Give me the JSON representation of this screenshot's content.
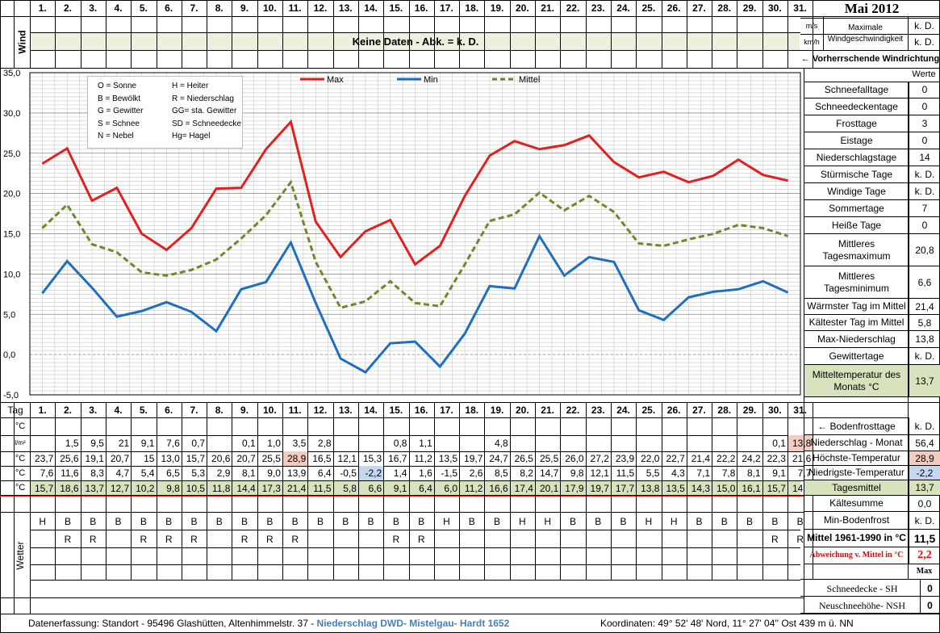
{
  "header": {
    "days": [
      "1.",
      "2.",
      "3.",
      "4.",
      "5.",
      "6.",
      "7.",
      "8.",
      "9.",
      "10.",
      "11.",
      "12.",
      "13.",
      "14.",
      "15.",
      "16.",
      "17.",
      "18.",
      "19.",
      "20.",
      "21.",
      "22.",
      "23.",
      "24.",
      "25.",
      "26.",
      "27.",
      "28.",
      "29.",
      "30.",
      "31."
    ],
    "month_title": "Mai 2012"
  },
  "wind": {
    "label": "Wind",
    "no_data": "Keine Daten - Abk. = k. D.",
    "unit_ms": "m/s",
    "unit_kmh": "km/h",
    "max_label": "Maximale Windgeschwindigkeit",
    "val1": "k. D.",
    "val2": "k. D.",
    "direction_label": "← Vorherrschende Windrichtung"
  },
  "legend": {
    "codes": [
      [
        "O = Sonne",
        "H = Heiter"
      ],
      [
        "B = Bewölkt",
        "R = Niederschlag"
      ],
      [
        "G = Gewitter",
        "GG= sta. Gewitter"
      ],
      [
        "S = Schnee",
        "SD = Schneedecke"
      ],
      [
        "N = Nebel",
        "Hg= Hagel"
      ]
    ],
    "series": [
      "Max",
      "Min",
      "Mittel"
    ]
  },
  "colors": {
    "max": "#e41f1f",
    "min": "#1f6fbf",
    "mittel": "#6b8a2a",
    "mittel_bg": "#d6e3bc",
    "hl_pink": "#f4cbbf",
    "hl_blue": "#c5d7f0",
    "wind_bg": "#eaf1dd"
  },
  "chart_data": {
    "type": "line",
    "x": [
      1,
      2,
      3,
      4,
      5,
      6,
      7,
      8,
      9,
      10,
      11,
      12,
      13,
      14,
      15,
      16,
      17,
      18,
      19,
      20,
      21,
      22,
      23,
      24,
      25,
      26,
      27,
      28,
      29,
      30,
      31
    ],
    "series": [
      {
        "name": "Max",
        "values": [
          23.7,
          25.6,
          19.1,
          20.7,
          15.0,
          13.0,
          15.7,
          20.6,
          20.7,
          25.5,
          28.9,
          16.5,
          12.1,
          15.3,
          16.7,
          11.2,
          13.5,
          19.7,
          24.7,
          26.5,
          25.5,
          26.0,
          27.2,
          23.9,
          22.0,
          22.7,
          21.4,
          22.2,
          24.2,
          22.3,
          21.6
        ]
      },
      {
        "name": "Min",
        "values": [
          7.6,
          11.6,
          8.3,
          4.7,
          5.4,
          6.5,
          5.3,
          2.9,
          8.1,
          9.0,
          13.9,
          6.4,
          -0.5,
          -2.2,
          1.4,
          1.6,
          -1.5,
          2.6,
          8.5,
          8.2,
          14.7,
          9.8,
          12.1,
          11.5,
          5.5,
          4.3,
          7.1,
          7.8,
          8.1,
          9.1,
          7.7
        ]
      },
      {
        "name": "Mittel",
        "values": [
          15.7,
          18.6,
          13.7,
          12.7,
          10.2,
          9.8,
          10.5,
          11.8,
          14.4,
          17.3,
          21.4,
          11.5,
          5.8,
          6.6,
          9.1,
          6.4,
          6.0,
          11.2,
          16.6,
          17.4,
          20.1,
          17.9,
          19.7,
          17.7,
          13.8,
          13.5,
          14.3,
          15.0,
          16.1,
          15.7,
          14.7
        ]
      }
    ],
    "ylim": [
      -5,
      35
    ],
    "yticks": [
      "35,0",
      "30,0",
      "25,0",
      "20,0",
      "15,0",
      "10,0",
      "5,0",
      "0,0",
      "-5,0"
    ],
    "grid": true,
    "legend": "top"
  },
  "table": {
    "tag_label": "Tag",
    "unit_c": "°C",
    "unit_lm2": "l/m²",
    "precip": [
      "",
      "1,5",
      "9,5",
      "",
      "9,1",
      "7,6",
      "0,7",
      "",
      "0,1",
      "1,0",
      "3,5",
      "2,8",
      "",
      "",
      "0,8",
      "1,1",
      "",
      "",
      "4,8",
      "",
      "",
      "",
      "",
      "",
      "",
      "",
      "",
      "",
      "",
      "0,1",
      "13,8"
    ],
    "precip_extra": [
      "",
      "",
      "",
      "21",
      "",
      "",
      "",
      "",
      "",
      "",
      "",
      "",
      "",
      "",
      "",
      "",
      "",
      "",
      "",
      "",
      "",
      "",
      "",
      "",
      "",
      "",
      "",
      "",
      "",
      "",
      ""
    ],
    "max": [
      "23,7",
      "25,6",
      "19,1",
      "20,7",
      "15",
      "13,0",
      "15,7",
      "20,6",
      "20,7",
      "25,5",
      "28,9",
      "16,5",
      "12,1",
      "15,3",
      "16,7",
      "11,2",
      "13,5",
      "19,7",
      "24,7",
      "26,5",
      "25,5",
      "26,0",
      "27,2",
      "23,9",
      "22,0",
      "22,7",
      "21,4",
      "22,2",
      "24,2",
      "22,3",
      "21,6"
    ],
    "min": [
      "7,6",
      "11,6",
      "8,3",
      "4,7",
      "5,4",
      "6,5",
      "5,3",
      "2,9",
      "8,1",
      "9,0",
      "13,9",
      "6,4",
      "-0,5",
      "-2,2",
      "1,4",
      "1,6",
      "-1,5",
      "2,6",
      "8,5",
      "8,2",
      "14,7",
      "9,8",
      "12,1",
      "11,5",
      "5,5",
      "4,3",
      "7,1",
      "7,8",
      "8,1",
      "9,1",
      "7,7"
    ],
    "mittel": [
      "15,7",
      "18,6",
      "13,7",
      "12,7",
      "10,2",
      "9,8",
      "10,5",
      "11,8",
      "14,4",
      "17,3",
      "21,4",
      "11,5",
      "5,8",
      "6,6",
      "9,1",
      "6,4",
      "6,0",
      "11,2",
      "16,6",
      "17,4",
      "20,1",
      "17,9",
      "19,7",
      "17,7",
      "13,8",
      "13,5",
      "14,3",
      "15,0",
      "16,1",
      "15,7",
      "14,7"
    ],
    "weather1": [
      "H",
      "B",
      "B",
      "B",
      "B",
      "B",
      "B",
      "B",
      "B",
      "B",
      "B",
      "B",
      "B",
      "B",
      "B",
      "B",
      "H",
      "B",
      "B",
      "H",
      "H",
      "B",
      "B",
      "B",
      "H",
      "H",
      "B",
      "B",
      "B",
      "B",
      "B"
    ],
    "weather2": [
      "",
      "R",
      "R",
      "",
      "R",
      "R",
      "R",
      "",
      "R",
      "R",
      "R",
      "",
      "",
      "",
      "R",
      "R",
      "",
      "",
      "",
      "",
      "",
      "",
      "",
      "",
      "",
      "",
      "",
      "",
      "",
      "R",
      "R"
    ],
    "wetter_label": "Wetter"
  },
  "stats": {
    "werte_label": "Werte",
    "rows": [
      {
        "label": "Schneefalltage",
        "value": "0"
      },
      {
        "label": "Schneedeckentage",
        "value": "0"
      },
      {
        "label": "Frosttage",
        "value": "3"
      },
      {
        "label": "Eistage",
        "value": "0"
      },
      {
        "label": "Niederschlagstage",
        "value": "14"
      },
      {
        "label": "Stürmische Tage",
        "value": "k. D."
      },
      {
        "label": "Windige Tage",
        "value": "k. D."
      },
      {
        "label": "Sommertage",
        "value": "7"
      },
      {
        "label": "Heiße Tage",
        "value": "0"
      },
      {
        "label": "Mittleres Tagesmaximum",
        "value": "20,8"
      },
      {
        "label": "Mittleres Tagesminimum",
        "value": "6,6"
      },
      {
        "label": "Wärmster Tag im Mittel",
        "value": "21,4"
      },
      {
        "label": "Kältester Tag im Mittel",
        "value": "5,8"
      },
      {
        "label": "Max-Niederschlag",
        "value": "13,8"
      },
      {
        "label": "Gewittertage",
        "value": "k. D."
      },
      {
        "label": "Mitteltemperatur des Monats °C",
        "value": "13,7"
      }
    ],
    "bottom_rows": [
      {
        "label": "← Bodenfrosttage",
        "value": "k. D."
      },
      {
        "label": "Niederschlag - Monat",
        "value": "56,4"
      },
      {
        "label": "Höchste-Temperatur",
        "value": "28,9"
      },
      {
        "label": "Niedrigste-Temperatur",
        "value": "-2,2"
      },
      {
        "label": "Tagesmittel",
        "value": "13,7"
      },
      {
        "label": "Kältesumme",
        "value": "0,0"
      },
      {
        "label": "Min-Bodenfrost",
        "value": "k. D."
      },
      {
        "label": "Mittel 1961-1990 in °C",
        "value": "11,5"
      },
      {
        "label": "Abweichung v. Mittel in °C",
        "value": "2,2"
      }
    ],
    "max_label": "Max",
    "snow_rows": [
      {
        "label": "Schneedecke -  SH",
        "value": "0"
      },
      {
        "label": "Neuschneehöhe- NSH",
        "value": "0"
      }
    ]
  },
  "footer": {
    "left": "Datenerfassung:  Standort -  95496  Glashütten, Altenhimmelstr. 37 -",
    "blue": "Niederschlag DWD- Mistelgau- Hardt 1652",
    "right": "Koordinaten:  49° 52' 48' Nord,   11° 27' 04'' Ost   439 m ü. NN"
  }
}
